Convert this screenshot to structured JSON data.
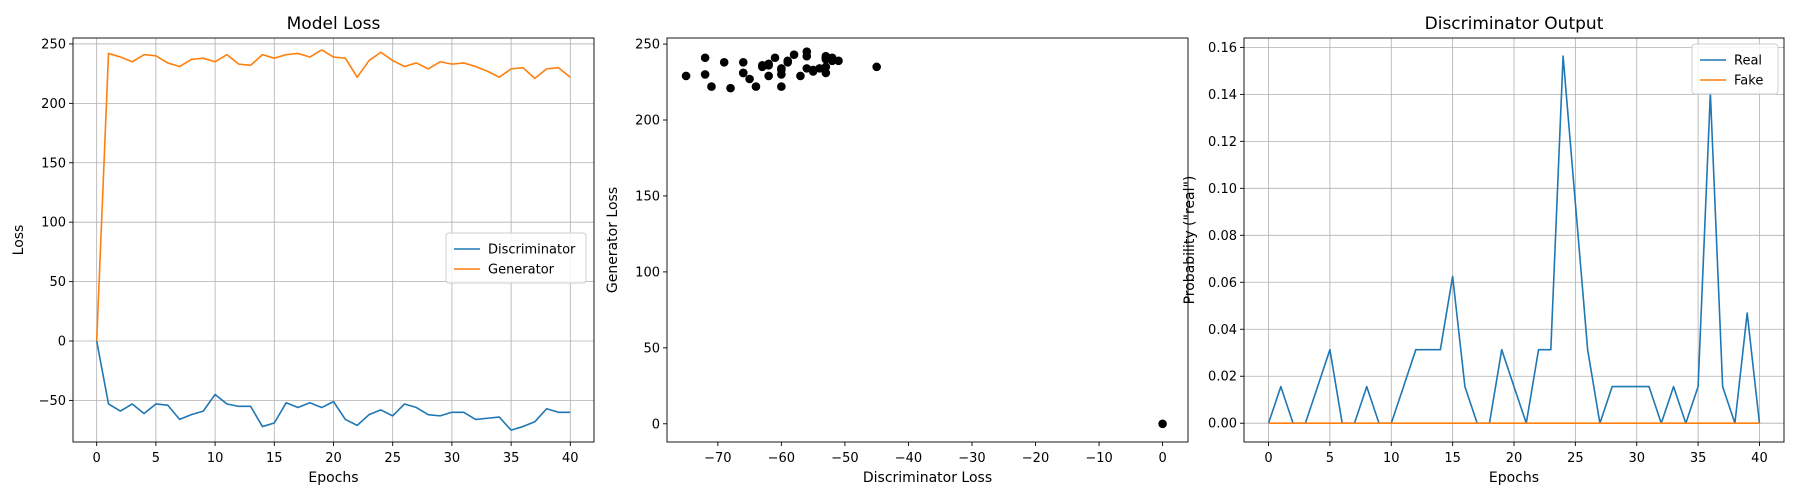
{
  "chart_data": [
    {
      "type": "line",
      "title": "Model Loss",
      "xlabel": "Epochs",
      "ylabel": "Loss",
      "xlim": [
        -2,
        42
      ],
      "ylim": [
        -85,
        255
      ],
      "xticks": [
        0,
        5,
        10,
        15,
        20,
        25,
        30,
        35,
        40
      ],
      "yticks": [
        -50,
        0,
        50,
        100,
        150,
        200,
        250
      ],
      "grid": true,
      "legend": "center-right",
      "x": [
        0,
        1,
        2,
        3,
        4,
        5,
        6,
        7,
        8,
        9,
        10,
        11,
        12,
        13,
        14,
        15,
        16,
        17,
        18,
        19,
        20,
        21,
        22,
        23,
        24,
        25,
        26,
        27,
        28,
        29,
        30,
        31,
        32,
        33,
        34,
        35,
        36,
        37,
        38,
        39,
        40
      ],
      "series": [
        {
          "name": "Discriminator",
          "color": "#1f77b4",
          "values": [
            0,
            -53,
            -59,
            -53,
            -61,
            -53,
            -54,
            -66,
            -62,
            -59,
            -45,
            -53,
            -55,
            -55,
            -72,
            -69,
            -52,
            -56,
            -52,
            -56,
            -51,
            -66,
            -71,
            -62,
            -58,
            -63,
            -53,
            -56,
            -62,
            -63,
            -60,
            -60,
            -66,
            -65,
            -64,
            -75,
            -72,
            -68,
            -57,
            -60,
            -60
          ]
        },
        {
          "name": "Generator",
          "color": "#ff7f0e",
          "values": [
            0,
            242,
            239,
            235,
            241,
            240,
            234,
            231,
            237,
            238,
            235,
            241,
            233,
            232,
            241,
            238,
            241,
            242,
            239,
            245,
            239,
            238,
            222,
            236,
            243,
            236,
            231,
            234,
            229,
            235,
            233,
            234,
            231,
            227,
            222,
            229,
            230,
            221,
            229,
            230,
            222
          ]
        }
      ]
    },
    {
      "type": "scatter",
      "title": "",
      "xlabel": "Discriminator Loss",
      "ylabel": "Generator Loss",
      "xlim": [
        -78,
        4
      ],
      "ylim": [
        -12,
        254
      ],
      "xticks": [
        -70,
        -60,
        -50,
        -40,
        -30,
        -20,
        -10,
        0
      ],
      "yticks": [
        0,
        50,
        100,
        150,
        200,
        250
      ],
      "grid": false,
      "color": "#000000",
      "points": [
        [
          0,
          0
        ],
        [
          -53,
          242
        ],
        [
          -59,
          239
        ],
        [
          -53,
          235
        ],
        [
          -61,
          241
        ],
        [
          -53,
          240
        ],
        [
          -54,
          234
        ],
        [
          -66,
          231
        ],
        [
          -62,
          237
        ],
        [
          -59,
          238
        ],
        [
          -45,
          235
        ],
        [
          -53,
          241
        ],
        [
          -55,
          233
        ],
        [
          -55,
          232
        ],
        [
          -72,
          241
        ],
        [
          -69,
          238
        ],
        [
          -52,
          241
        ],
        [
          -56,
          242
        ],
        [
          -52,
          239
        ],
        [
          -56,
          245
        ],
        [
          -51,
          239
        ],
        [
          -66,
          238
        ],
        [
          -71,
          222
        ],
        [
          -62,
          236
        ],
        [
          -58,
          243
        ],
        [
          -63,
          236
        ],
        [
          -53,
          231
        ],
        [
          -56,
          234
        ],
        [
          -62,
          229
        ],
        [
          -63,
          235
        ],
        [
          -60,
          233
        ],
        [
          -60,
          234
        ],
        [
          -66,
          231
        ],
        [
          -65,
          227
        ],
        [
          -64,
          222
        ],
        [
          -75,
          229
        ],
        [
          -72,
          230
        ],
        [
          -68,
          221
        ],
        [
          -57,
          229
        ],
        [
          -60,
          230
        ],
        [
          -60,
          222
        ]
      ]
    },
    {
      "type": "line",
      "title": "Discriminator Output",
      "xlabel": "Epochs",
      "ylabel": "Probability (\"real\")",
      "xlim": [
        -2,
        42
      ],
      "ylim": [
        -0.008,
        0.164
      ],
      "xticks": [
        0,
        5,
        10,
        15,
        20,
        25,
        30,
        35,
        40
      ],
      "yticks": [
        0.0,
        0.02,
        0.04,
        0.06,
        0.08,
        0.1,
        0.12,
        0.14,
        0.16
      ],
      "ytick_decimals": 2,
      "grid": true,
      "legend": "top-right",
      "x": [
        0,
        1,
        2,
        3,
        4,
        5,
        6,
        7,
        8,
        9,
        10,
        11,
        12,
        13,
        14,
        15,
        16,
        17,
        18,
        19,
        20,
        21,
        22,
        23,
        24,
        25,
        26,
        27,
        28,
        29,
        30,
        31,
        32,
        33,
        34,
        35,
        36,
        37,
        38,
        39,
        40
      ],
      "series": [
        {
          "name": "Real",
          "color": "#1f77b4",
          "values": [
            0,
            0.0156,
            0,
            0,
            0.0156,
            0.0313,
            0,
            0,
            0.0156,
            0,
            0,
            0.0156,
            0.0313,
            0.0313,
            0.0313,
            0.0625,
            0.0156,
            0,
            0,
            0.0313,
            0.0156,
            0,
            0.0313,
            0.0313,
            0.1563,
            0.0938,
            0.0313,
            0,
            0.0156,
            0.0156,
            0.0156,
            0.0156,
            0,
            0.0156,
            0,
            0.0156,
            0.1406,
            0.0156,
            0,
            0.0469,
            0
          ]
        },
        {
          "name": "Fake",
          "color": "#ff7f0e",
          "values": [
            0,
            0,
            0,
            0,
            0,
            0,
            0,
            0,
            0,
            0,
            0,
            0,
            0,
            0,
            0,
            0,
            0,
            0,
            0,
            0,
            0,
            0,
            0,
            0,
            0,
            0,
            0,
            0,
            0,
            0,
            0,
            0,
            0,
            0,
            0,
            0,
            0,
            0,
            0,
            0,
            0
          ]
        }
      ]
    }
  ]
}
